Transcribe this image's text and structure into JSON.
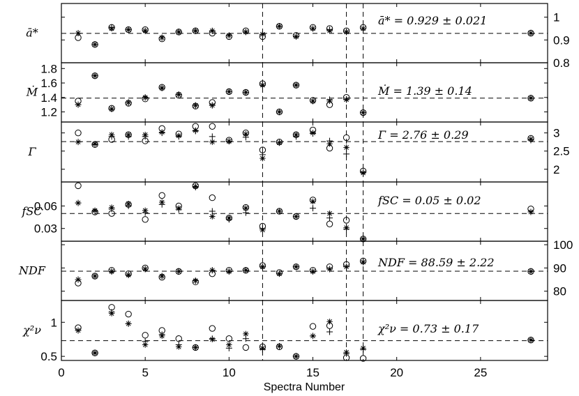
{
  "chart_data": {
    "type": "scatter",
    "xlabel": "Spectra Number",
    "xlim": [
      0,
      29
    ],
    "xticks": [
      0,
      5,
      10,
      15,
      20,
      25
    ],
    "vlines": [
      12,
      17,
      18
    ],
    "panels": [
      {
        "id": "a",
        "ylabel": "ā*",
        "annotation": "ā* = 0.929 ± 0.021",
        "ylim": [
          0.8,
          1.06
        ],
        "ticks": [
          0.8,
          0.9,
          1
        ],
        "tick_labels": [
          "0.8",
          "0.9",
          "1"
        ],
        "tick_side": "right",
        "hline": 0.929,
        "series": [
          {
            "marker": "circle",
            "x": [
              1,
              2,
              3,
              4,
              5,
              6,
              7,
              8,
              9,
              10,
              11,
              12,
              13,
              14,
              15,
              16,
              17,
              18,
              28
            ],
            "y": [
              0.91,
              0.88,
              0.955,
              0.945,
              0.945,
              0.905,
              0.935,
              0.94,
              0.93,
              0.915,
              0.94,
              0.915,
              0.96,
              0.92,
              0.955,
              0.95,
              0.94,
              0.955,
              0.93
            ]
          },
          {
            "marker": "star",
            "x": [
              1,
              2,
              3,
              4,
              5,
              6,
              7,
              8,
              9,
              10,
              11,
              12,
              13,
              14,
              15,
              16,
              17,
              18,
              28
            ],
            "y": [
              0.93,
              0.88,
              0.95,
              0.945,
              0.94,
              0.91,
              0.935,
              0.94,
              0.94,
              0.92,
              0.935,
              0.925,
              0.96,
              0.915,
              0.95,
              0.94,
              0.935,
              0.95,
              0.93
            ]
          },
          {
            "marker": "plus",
            "x": [
              1,
              2,
              3,
              4,
              5,
              6,
              7,
              8,
              9,
              10,
              11,
              12,
              13,
              14,
              15,
              16,
              17,
              18,
              28
            ],
            "y": [
              0.93,
              0.88,
              0.955,
              0.945,
              0.94,
              0.91,
              0.935,
              0.94,
              0.94,
              0.92,
              0.935,
              0.925,
              0.96,
              0.915,
              0.95,
              0.945,
              0.935,
              0.95,
              0.93
            ]
          }
        ]
      },
      {
        "id": "mdot",
        "ylabel": "Ṁ",
        "annotation": "Ṁ = 1.39 ± 0.14",
        "ylim": [
          1.06,
          1.88
        ],
        "ticks": [
          1.2,
          1.4,
          1.6,
          1.8
        ],
        "tick_labels": [
          "1.2",
          "1.4",
          "1.6",
          "1.8"
        ],
        "tick_side": "left",
        "hline": 1.39,
        "series": [
          {
            "marker": "circle",
            "x": [
              1,
              2,
              3,
              4,
              5,
              6,
              7,
              8,
              9,
              10,
              11,
              12,
              13,
              14,
              15,
              16,
              17,
              18,
              28
            ],
            "y": [
              1.35,
              1.7,
              1.25,
              1.32,
              1.38,
              1.54,
              1.43,
              1.28,
              1.33,
              1.48,
              1.47,
              1.59,
              1.2,
              1.57,
              1.36,
              1.3,
              1.4,
              1.19,
              1.39
            ]
          },
          {
            "marker": "star",
            "x": [
              1,
              2,
              3,
              4,
              5,
              6,
              7,
              8,
              9,
              10,
              11,
              12,
              13,
              14,
              15,
              16,
              17,
              18,
              28
            ],
            "y": [
              1.3,
              1.7,
              1.24,
              1.33,
              1.4,
              1.53,
              1.44,
              1.29,
              1.29,
              1.48,
              1.47,
              1.57,
              1.2,
              1.57,
              1.35,
              1.35,
              1.37,
              1.19,
              1.39
            ]
          },
          {
            "marker": "plus",
            "x": [
              1,
              2,
              3,
              4,
              5,
              6,
              7,
              8,
              9,
              10,
              11,
              12,
              13,
              14,
              15,
              16,
              17,
              18,
              28
            ],
            "y": [
              1.3,
              1.7,
              1.24,
              1.33,
              1.4,
              1.53,
              1.44,
              1.29,
              1.29,
              1.48,
              1.47,
              1.57,
              1.2,
              1.57,
              1.35,
              1.37,
              1.37,
              1.19,
              1.39
            ]
          }
        ]
      },
      {
        "id": "gamma",
        "ylabel": "Γ",
        "annotation": "Γ = 2.76 ± 0.29",
        "ylim": [
          1.65,
          3.3
        ],
        "ticks": [
          2,
          2.5,
          3
        ],
        "tick_labels": [
          "2",
          "2.5",
          "3"
        ],
        "tick_side": "right",
        "hline": 2.76,
        "series": [
          {
            "marker": "circle",
            "x": [
              1,
              2,
              3,
              4,
              5,
              6,
              7,
              8,
              9,
              10,
              11,
              12,
              13,
              14,
              15,
              16,
              17,
              18,
              28
            ],
            "y": [
              3.0,
              2.68,
              2.82,
              2.95,
              2.78,
              3.12,
              2.97,
              3.18,
              3.18,
              2.8,
              3.0,
              2.53,
              2.75,
              2.95,
              3.08,
              2.58,
              2.87,
              1.95,
              2.85
            ]
          },
          {
            "marker": "star",
            "x": [
              1,
              2,
              3,
              4,
              5,
              6,
              7,
              8,
              9,
              10,
              11,
              12,
              13,
              14,
              15,
              16,
              17,
              18,
              28
            ],
            "y": [
              2.75,
              2.7,
              2.95,
              2.95,
              2.95,
              3.02,
              2.92,
              3.07,
              2.75,
              2.77,
              2.97,
              2.3,
              2.73,
              2.95,
              3.0,
              2.7,
              2.6,
              1.9,
              2.83
            ]
          },
          {
            "marker": "plus",
            "x": [
              1,
              2,
              3,
              4,
              5,
              6,
              7,
              8,
              9,
              10,
              11,
              12,
              13,
              14,
              15,
              16,
              17,
              18,
              28
            ],
            "y": [
              2.75,
              2.68,
              2.9,
              2.9,
              2.9,
              3.0,
              2.9,
              3.05,
              2.9,
              2.77,
              2.88,
              2.4,
              2.73,
              2.9,
              2.98,
              2.78,
              2.42,
              1.92,
              2.8
            ]
          }
        ]
      },
      {
        "id": "fsc",
        "ylabel": "fSC",
        "annotation": "fSC = 0.05 ± 0.02",
        "ylim": [
          0.013,
          0.092
        ],
        "ticks": [
          0.03,
          0.06
        ],
        "tick_labels": [
          "0.03",
          "0.06"
        ],
        "tick_side": "left",
        "hline": 0.05,
        "series": [
          {
            "marker": "circle",
            "x": [
              1,
              2,
              3,
              4,
              5,
              6,
              7,
              8,
              9,
              10,
              11,
              12,
              13,
              14,
              15,
              16,
              17,
              18,
              28
            ],
            "y": [
              0.087,
              0.052,
              0.05,
              0.062,
              0.042,
              0.074,
              0.06,
              0.087,
              0.071,
              0.044,
              0.058,
              0.033,
              0.053,
              0.046,
              0.068,
              0.036,
              0.041,
              0.016,
              0.056
            ]
          },
          {
            "marker": "star",
            "x": [
              1,
              2,
              3,
              4,
              5,
              6,
              7,
              8,
              9,
              10,
              11,
              12,
              13,
              14,
              15,
              16,
              17,
              18,
              28
            ],
            "y": [
              0.064,
              0.054,
              0.058,
              0.063,
              0.054,
              0.065,
              0.057,
              0.086,
              0.046,
              0.044,
              0.057,
              0.028,
              0.053,
              0.046,
              0.066,
              0.05,
              0.031,
              0.016,
              0.052
            ]
          },
          {
            "marker": "plus",
            "x": [
              1,
              2,
              3,
              4,
              5,
              6,
              7,
              8,
              9,
              10,
              11,
              12,
              13,
              14,
              15,
              16,
              17,
              18,
              28
            ],
            "y": [
              0.064,
              0.053,
              0.056,
              0.06,
              0.051,
              0.062,
              0.055,
              0.085,
              0.053,
              0.042,
              0.051,
              0.03,
              0.053,
              0.046,
              0.057,
              0.044,
              0.029,
              0.016,
              0.052
            ]
          }
        ]
      },
      {
        "id": "ndf",
        "ylabel": "NDF",
        "annotation": "NDF = 88.59 ± 2.22",
        "ylim": [
          76,
          101.5
        ],
        "ticks": [
          80,
          90,
          100
        ],
        "tick_labels": [
          "80",
          "90",
          "100"
        ],
        "tick_side": "right",
        "hline": 88.59,
        "series": [
          {
            "marker": "circle",
            "x": [
              1,
              2,
              3,
              4,
              5,
              6,
              7,
              8,
              9,
              10,
              11,
              12,
              13,
              14,
              15,
              16,
              17,
              18,
              28
            ],
            "y": [
              83.5,
              86.5,
              89.0,
              87.5,
              90.0,
              86.0,
              88.5,
              84.0,
              87.5,
              89.0,
              89.0,
              91.0,
              88.0,
              90.5,
              89.0,
              90.5,
              91.5,
              93.0,
              88.5
            ]
          },
          {
            "marker": "star",
            "x": [
              1,
              2,
              3,
              4,
              5,
              6,
              7,
              8,
              9,
              10,
              11,
              12,
              13,
              14,
              15,
              16,
              17,
              18,
              28
            ],
            "y": [
              85.0,
              86.5,
              88.5,
              87.0,
              89.5,
              86.5,
              88.5,
              84.5,
              89.0,
              88.5,
              89.0,
              90.5,
              87.5,
              90.5,
              88.5,
              89.5,
              90.5,
              92.5,
              88.5
            ]
          },
          {
            "marker": "plus",
            "x": [
              1,
              2,
              3,
              4,
              5,
              6,
              7,
              8,
              9,
              10,
              11,
              12,
              13,
              14,
              15,
              16,
              17,
              18,
              28
            ],
            "y": [
              85.0,
              86.5,
              88.5,
              87.0,
              89.5,
              86.5,
              88.5,
              84.5,
              89.0,
              88.5,
              89.0,
              90.5,
              87.5,
              90.5,
              88.5,
              89.5,
              90.5,
              92.5,
              88.5
            ]
          }
        ]
      },
      {
        "id": "chi2",
        "ylabel": "χ²ν",
        "annotation": "χ²ν = 0.73 ± 0.17",
        "ylim": [
          0.44,
          1.32
        ],
        "ticks": [
          0.5,
          1
        ],
        "tick_labels": [
          "0.5",
          "1"
        ],
        "tick_side": "left",
        "hline": 0.73,
        "series": [
          {
            "marker": "circle",
            "x": [
              1,
              2,
              3,
              4,
              5,
              6,
              7,
              8,
              9,
              10,
              11,
              12,
              13,
              14,
              15,
              16,
              17,
              18,
              28
            ],
            "y": [
              0.92,
              0.55,
              1.22,
              1.12,
              0.81,
              0.88,
              0.76,
              0.63,
              0.91,
              0.76,
              0.63,
              0.64,
              0.64,
              0.5,
              0.94,
              0.95,
              0.48,
              0.47,
              0.74
            ]
          },
          {
            "marker": "star",
            "x": [
              1,
              2,
              3,
              4,
              5,
              6,
              7,
              8,
              9,
              10,
              11,
              12,
              13,
              14,
              15,
              16,
              17,
              18,
              28
            ],
            "y": [
              0.88,
              0.55,
              1.13,
              0.98,
              0.67,
              0.8,
              0.64,
              0.63,
              0.75,
              0.67,
              0.83,
              0.62,
              0.65,
              0.5,
              0.8,
              1.01,
              0.56,
              0.62,
              0.74
            ]
          },
          {
            "marker": "plus",
            "x": [
              1,
              2,
              3,
              4,
              5,
              6,
              7,
              8,
              9,
              10,
              11,
              12,
              13,
              14,
              15,
              16,
              17,
              18,
              28
            ],
            "y": [
              0.88,
              0.55,
              1.15,
              0.98,
              0.72,
              0.82,
              0.67,
              0.63,
              0.76,
              0.62,
              0.76,
              0.6,
              0.65,
              0.5,
              0.8,
              0.86,
              0.54,
              0.6,
              0.74
            ]
          }
        ]
      }
    ]
  }
}
